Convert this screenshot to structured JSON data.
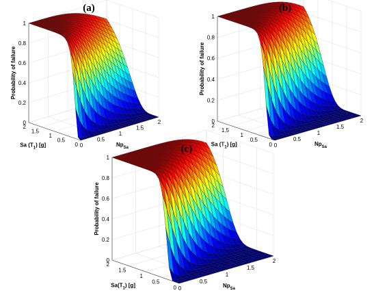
{
  "chart_data": [
    {
      "type": "surface",
      "panel_label": "(a)",
      "xlabel_parts": [
        "Sa (T",
        "1",
        ") [g]"
      ],
      "ylabel_parts": [
        "Np",
        "Sa"
      ],
      "zlabel": "Probability of failure",
      "x_ticks": [
        "0",
        "0.5",
        "1",
        "1.5",
        "2"
      ],
      "y_ticks": [
        "0",
        "0.5",
        "1",
        "1.5",
        "2"
      ],
      "z_ticks": [
        "0",
        "0.2",
        "0.4",
        "0.6",
        "0.8",
        "1"
      ],
      "xlim": [
        0,
        2
      ],
      "ylim": [
        0,
        2
      ],
      "zlim": [
        0,
        1
      ],
      "surface_model": {
        "median_sa_intercept": 0.25,
        "median_sa_slope": 0.55,
        "dispersion": 0.45
      }
    },
    {
      "type": "surface",
      "panel_label": "(b)",
      "xlabel_parts": [
        "Sa (T",
        "1",
        ") [g]"
      ],
      "ylabel_parts": [
        "Np",
        "Sa"
      ],
      "zlabel": "Probability of failure",
      "x_ticks": [
        "0",
        "0.5",
        "1",
        "1.5",
        "2"
      ],
      "y_ticks": [
        "0",
        "0.5",
        "1",
        "1.5",
        "2"
      ],
      "z_ticks": [
        "0",
        "0.2",
        "0.4",
        "0.6",
        "0.8",
        "1"
      ],
      "xlim": [
        0,
        2
      ],
      "ylim": [
        0,
        2
      ],
      "zlim": [
        0,
        1
      ],
      "surface_model": {
        "median_sa_intercept": 0.35,
        "median_sa_slope": 0.55,
        "dispersion": 0.3
      }
    },
    {
      "type": "surface",
      "panel_label": "(c)",
      "xlabel_parts": [
        "Sa(T",
        "1",
        ") [g]"
      ],
      "ylabel_parts": [
        "Np",
        "Sa"
      ],
      "zlabel": "Probability of failure",
      "x_ticks": [
        "0",
        "0.5",
        "1",
        "1.5",
        "2"
      ],
      "y_ticks": [
        "0",
        "0.5",
        "1",
        "1.5",
        "2"
      ],
      "z_ticks": [
        "0",
        "0.2",
        "0.4",
        "0.6",
        "0.8",
        "1"
      ],
      "xlim": [
        0,
        2
      ],
      "ylim": [
        0,
        2
      ],
      "zlim": [
        0,
        1
      ],
      "surface_model": {
        "median_sa_intercept": 0.4,
        "median_sa_slope": 0.55,
        "dispersion": 0.25
      }
    }
  ]
}
